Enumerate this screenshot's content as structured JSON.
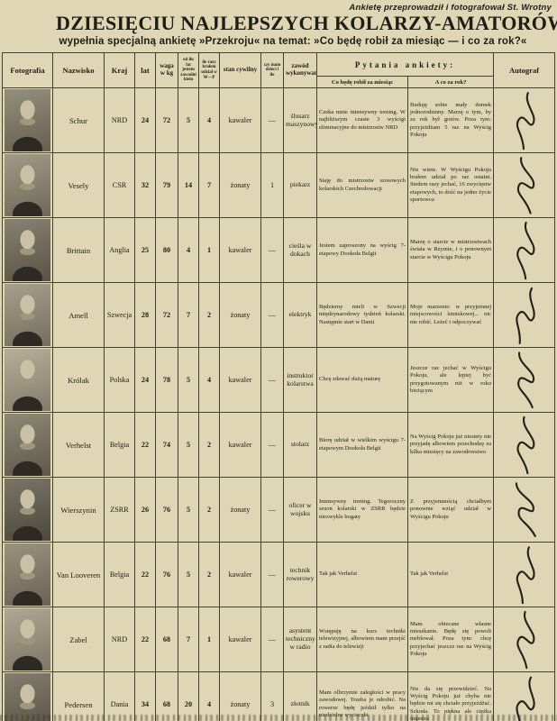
{
  "colors": {
    "paper": "#ded6b4",
    "ink": "#201d15",
    "table_line": "#44402e",
    "signature_ink": "#241f18"
  },
  "page": {
    "credit": "Ankietę przeprowadził i fotografował St. Wrotny",
    "title": "DZIESIĘCIU NAJLEPSZYCH KOLARZY-AMATORÓW ŚWIATA",
    "subtitle": "wypełnia specjalną ankietę »Przekroju« na temat: »Co będę robił za miesiąc — i co za rok?«"
  },
  "table": {
    "headers": {
      "photo": "Fotografia",
      "surname": "Nazwisko",
      "country": "Kraj",
      "age": "lat",
      "weight": "waga w kg",
      "years_competing": "od ilu lat jestem zawodnikiem",
      "wp_starts": "ile razy brałem udział w W—P",
      "marital": "stan cywilny",
      "children": "czy mam dzieci i ile",
      "profession": "zawód wykonywany",
      "questions_group": "Pytania ankiety:",
      "q_month": "Co będę robił za miesiąc",
      "q_year": "A co za rok?",
      "autograph": "Autograf"
    },
    "rows": [
      {
        "surname": "Schur",
        "country": "NRD",
        "age": "24",
        "weight": "72",
        "years_competing": "5",
        "wp_starts": "4",
        "marital": "kawaler",
        "children": "—",
        "profession": "ślusarz maszynowy",
        "in_month": "Czeka mnie intensywny trening. W najbliższym czasie 3 wyścigi eliminacyjne do mistrzostw NRD",
        "in_year": "Buduję sobie mały domek jednorodzinny. Marzę o tym, by za rok był gotów. Poza tym: przyjeżdżam 5 raz na Wyścig Pokoju"
      },
      {
        "surname": "Vesely",
        "country": "CSR",
        "age": "32",
        "weight": "79",
        "years_competing": "14",
        "wp_starts": "7",
        "marital": "żonaty",
        "children": "1",
        "profession": "piekarz",
        "in_month": "Staję do mistrzostw szosowych kolarskich Czechosłowacji",
        "in_year": "Nie wiem. W Wyścigu Pokoju brałem udział po raz ostatni. Siedem razy jechać, 16 zwycięstw etapowych, to dość na jedno życie sportowca"
      },
      {
        "surname": "Brittain",
        "country": "Anglia",
        "age": "25",
        "weight": "80",
        "years_competing": "4",
        "wp_starts": "1",
        "marital": "kawaler",
        "children": "—",
        "profession": "cieśla w dokach",
        "in_month": "Jestem zaproszony na wyścig 7-etapowy Dookoła Belgii",
        "in_year": "Marzę o starcie w mistrzostwach świata w Rzymie, i o ponownym starcie w Wyścigu Pokoju"
      },
      {
        "surname": "Amell",
        "country": "Szwecja",
        "age": "28",
        "weight": "72",
        "years_competing": "7",
        "wp_starts": "2",
        "marital": "żonaty",
        "children": "—",
        "profession": "elektryk",
        "in_month": "Będziemy mieli w Szwecji międzynarodowy tydzień kolarski. Następnie start w Danii",
        "in_year": "Moje marzenie: w przyjemnej miejscowości letniskowej... nic nie robić. Leżeć i odpoczywać"
      },
      {
        "surname": "Królak",
        "country": "Polska",
        "age": "24",
        "weight": "78",
        "years_competing": "5",
        "wp_starts": "4",
        "marital": "kawaler",
        "children": "—",
        "profession": "instruktor kolarstwa",
        "in_month": "Chcę zdawać dużą maturę",
        "in_year": "Jeszcze raz jechać w Wyścigu Pokoju, ale lepiej być przygotowanym niż w roku bieżącym"
      },
      {
        "surname": "Verhelst",
        "country": "Belgia",
        "age": "22",
        "weight": "74",
        "years_competing": "5",
        "wp_starts": "2",
        "marital": "kawaler",
        "children": "—",
        "profession": "stolarz",
        "in_month": "Biorę udział w wielkim wyścigu 7-etapowym Dookoła Belgii",
        "in_year": "Na Wyścig Pokoju już niestety nie przyjadę albowiem przechodzę za kilka miesięcy na zawodowstwo"
      },
      {
        "surname": "Wierszynin",
        "country": "ZSRR",
        "age": "26",
        "weight": "76",
        "years_competing": "5",
        "wp_starts": "2",
        "marital": "żonaty",
        "children": "—",
        "profession": "oficer w wojsku",
        "in_month": "Intensywny trening. Tegoroczny sezon kolarski w ZSRR będzie niezwykle bogaty",
        "in_year": "Z przyjemnością chciałbym ponownie wziąć udział w Wyścigu Pokoju"
      },
      {
        "surname": "Van Looveren",
        "country": "Belgia",
        "age": "22",
        "weight": "76",
        "years_competing": "5",
        "wp_starts": "2",
        "marital": "kawaler",
        "children": "—",
        "profession": "technik rowerowy",
        "in_month": "Tak jak Verhelst",
        "in_year": "Tak jak Verhelst"
      },
      {
        "surname": "Zabel",
        "country": "NRD",
        "age": "22",
        "weight": "68",
        "years_competing": "7",
        "wp_starts": "1",
        "marital": "kawaler",
        "children": "—",
        "profession": "asystent techniczny w radio",
        "in_month": "Wstępuję na kurs techniki telewizyjnej, albowiem mam przejść z radia do telewizji",
        "in_year": "Mam obiecane własne mieszkanie. Będę się powoli meblował. Poza tym: chcę przyjechać jeszcze raz na Wyścig Pokoju"
      },
      {
        "surname": "Pedersen",
        "country": "Dania",
        "age": "34",
        "weight": "68",
        "years_competing": "20",
        "wp_starts": "4",
        "marital": "żonaty",
        "children": "3",
        "profession": "złotnik",
        "in_month": "Mam olbrzymie zaległości w pracy zawodowej. Trzeba je odrobić. Na rowerze będę jeździł tylko na niedzielne wycieczki",
        "in_year": "Nie da się przewidzieć. Na Wyścig Pokoju już chyba nie będzie mi się chciało przyjeżdżać. Szkoda. To piękna ale ciężka impreza"
      }
    ]
  }
}
